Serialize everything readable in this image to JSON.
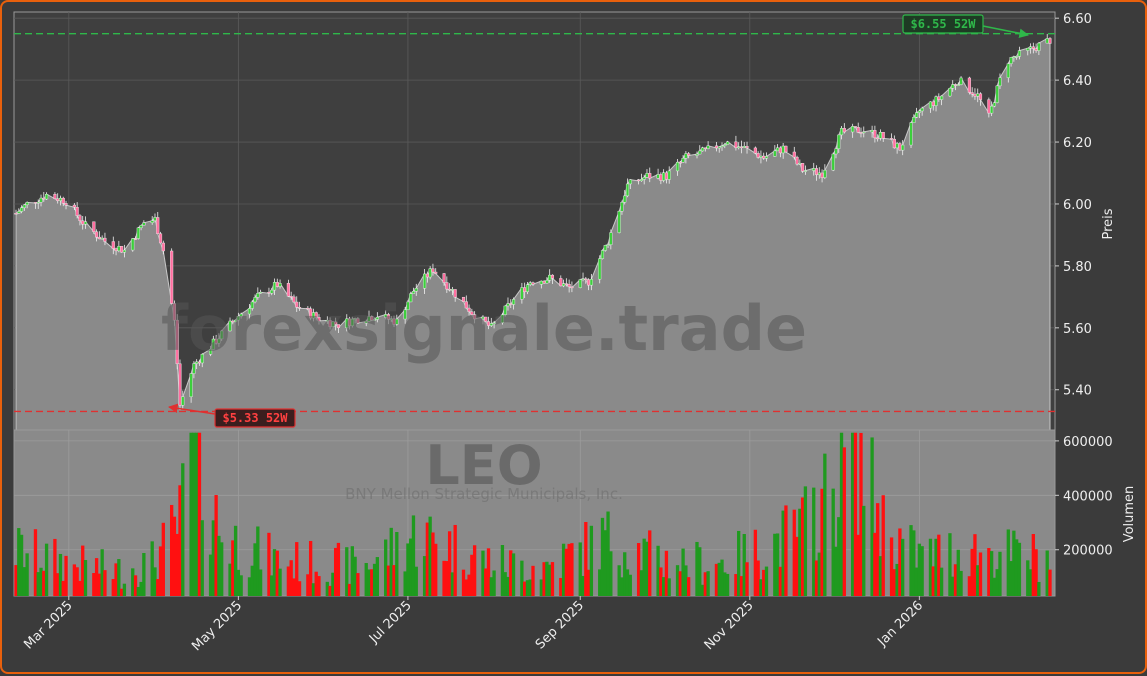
{
  "watermark": {
    "site": "forexsignale.trade",
    "symbol": "LEO",
    "company": "BNY Mellon Strategic Municipals, Inc."
  },
  "colors": {
    "up": "#1f9a1f",
    "down": "#ff1010",
    "area": "#8a8a8a",
    "high_line": "#2fb84a",
    "low_line": "#e03030",
    "frame": "#e8600c",
    "background": "#3b3b3b"
  },
  "chart_data": [
    {
      "type": "candlestick",
      "ylabel": "Preis",
      "ylim": [
        5.27,
        6.62
      ],
      "y_ticks": [
        "5.40",
        "5.60",
        "5.80",
        "6.00",
        "6.20",
        "6.40",
        "6.60"
      ],
      "x_ticks": [
        "Mar 2025",
        "May 2025",
        "Jul 2025",
        "Sep 2025",
        "Nov 2025",
        "Jan 2026"
      ],
      "grid": true,
      "date_range": [
        "2025-02-10",
        "2026-02-17"
      ],
      "close_path": [
        [
          "2025-02-10",
          5.97
        ],
        [
          "2025-02-14",
          6.0
        ],
        [
          "2025-02-21",
          6.03
        ],
        [
          "2025-02-28",
          6.01
        ],
        [
          "2025-03-07",
          5.93
        ],
        [
          "2025-03-14",
          5.88
        ],
        [
          "2025-03-21",
          5.85
        ],
        [
          "2025-03-28",
          5.94
        ],
        [
          "2025-04-01",
          5.95
        ],
        [
          "2025-04-04",
          5.85
        ],
        [
          "2025-04-08",
          5.62
        ],
        [
          "2025-04-10",
          5.35
        ],
        [
          "2025-04-15",
          5.48
        ],
        [
          "2025-04-22",
          5.55
        ],
        [
          "2025-04-30",
          5.63
        ],
        [
          "2025-05-08",
          5.7
        ],
        [
          "2025-05-15",
          5.74
        ],
        [
          "2025-05-22",
          5.67
        ],
        [
          "2025-05-30",
          5.63
        ],
        [
          "2025-06-06",
          5.61
        ],
        [
          "2025-06-13",
          5.63
        ],
        [
          "2025-06-20",
          5.64
        ],
        [
          "2025-06-27",
          5.62
        ],
        [
          "2025-07-03",
          5.72
        ],
        [
          "2025-07-10",
          5.79
        ],
        [
          "2025-07-17",
          5.72
        ],
        [
          "2025-07-24",
          5.65
        ],
        [
          "2025-07-31",
          5.6
        ],
        [
          "2025-08-07",
          5.68
        ],
        [
          "2025-08-14",
          5.75
        ],
        [
          "2025-08-21",
          5.76
        ],
        [
          "2025-08-28",
          5.73
        ],
        [
          "2025-09-04",
          5.75
        ],
        [
          "2025-09-11",
          5.88
        ],
        [
          "2025-09-18",
          6.06
        ],
        [
          "2025-09-25",
          6.09
        ],
        [
          "2025-10-02",
          6.09
        ],
        [
          "2025-10-09",
          6.15
        ],
        [
          "2025-10-16",
          6.17
        ],
        [
          "2025-10-23",
          6.2
        ],
        [
          "2025-10-30",
          6.18
        ],
        [
          "2025-11-06",
          6.15
        ],
        [
          "2025-11-13",
          6.18
        ],
        [
          "2025-11-20",
          6.11
        ],
        [
          "2025-11-27",
          6.1
        ],
        [
          "2025-12-04",
          6.23
        ],
        [
          "2025-12-11",
          6.24
        ],
        [
          "2025-12-18",
          6.22
        ],
        [
          "2025-12-25",
          6.18
        ],
        [
          "2026-01-01",
          6.3
        ],
        [
          "2026-01-08",
          6.34
        ],
        [
          "2026-01-15",
          6.4
        ],
        [
          "2026-01-22",
          6.35
        ],
        [
          "2026-01-26",
          6.28
        ],
        [
          "2026-02-01",
          6.46
        ],
        [
          "2026-02-08",
          6.49
        ],
        [
          "2026-02-17",
          6.53
        ]
      ],
      "annotations": [
        {
          "label": "$6.55 52W",
          "value": 6.55,
          "kind": "52-week high"
        },
        {
          "label": "$5.33 52W",
          "value": 5.33,
          "kind": "52-week low"
        }
      ]
    },
    {
      "type": "bar",
      "ylabel": "Volumen",
      "ylim": [
        30000,
        640000
      ],
      "y_ticks": [
        "200000",
        "400000",
        "600000"
      ],
      "volume_path": [
        [
          "2025-02-10",
          200000
        ],
        [
          "2025-03-01",
          150000
        ],
        [
          "2025-03-20",
          120000
        ],
        [
          "2025-04-01",
          160000
        ],
        [
          "2025-04-10",
          300000
        ],
        [
          "2025-04-14",
          620000
        ],
        [
          "2025-04-25",
          250000
        ],
        [
          "2025-05-15",
          160000
        ],
        [
          "2025-06-15",
          140000
        ],
        [
          "2025-07-05",
          260000
        ],
        [
          "2025-08-01",
          150000
        ],
        [
          "2025-08-20",
          140000
        ],
        [
          "2025-09-10",
          240000
        ],
        [
          "2025-10-01",
          160000
        ],
        [
          "2025-10-20",
          150000
        ],
        [
          "2025-11-05",
          200000
        ],
        [
          "2025-11-20",
          280000
        ],
        [
          "2025-12-01",
          420000
        ],
        [
          "2025-12-08",
          600000
        ],
        [
          "2025-12-20",
          270000
        ],
        [
          "2026-01-01",
          180000
        ],
        [
          "2026-01-20",
          200000
        ],
        [
          "2026-02-17",
          170000
        ]
      ]
    }
  ]
}
